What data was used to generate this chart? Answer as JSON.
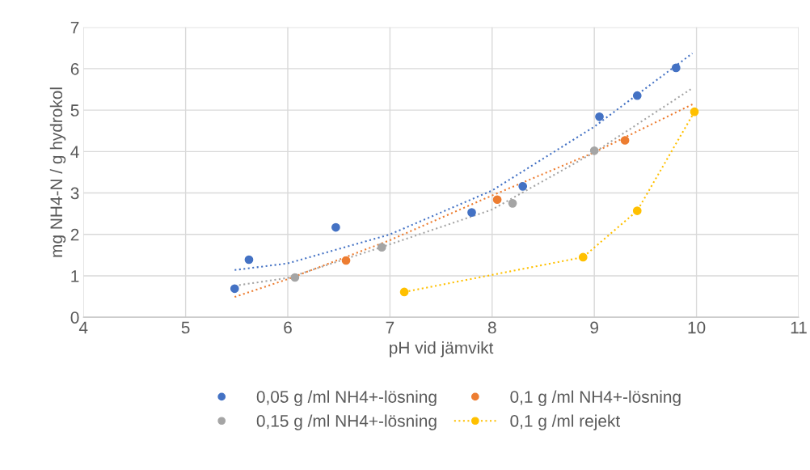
{
  "chart_data": {
    "type": "scatter",
    "xlabel": "pH vid jämvikt",
    "ylabel": "mg NH4-N / g hydrokol",
    "xlim": [
      4,
      11
    ],
    "ylim": [
      0,
      7
    ],
    "xticks": [
      4,
      5,
      6,
      7,
      8,
      9,
      10,
      11
    ],
    "yticks": [
      0,
      1,
      2,
      3,
      4,
      5,
      6,
      7
    ],
    "grid": true,
    "legend": "bottom",
    "series": [
      {
        "name": "0,05 g /ml NH4+-lösning",
        "marker": "circle",
        "color": "#4472c4",
        "x": [
          5.48,
          5.62,
          6.47,
          7.8,
          8.3,
          9.05,
          9.42,
          9.8
        ],
        "values": [
          0.69,
          1.39,
          2.17,
          2.53,
          3.16,
          4.84,
          5.35,
          6.02
        ]
      },
      {
        "name": "0,1 g /ml NH4+-lösning",
        "marker": "circle",
        "color": "#ed7d31",
        "x": [
          6.57,
          8.05,
          9.3
        ],
        "values": [
          1.37,
          2.84,
          4.27
        ]
      },
      {
        "name": "0,15 g /ml NH4+-lösning",
        "marker": "circle",
        "color": "#a5a5a5",
        "x": [
          6.07,
          6.92,
          8.2,
          9.0
        ],
        "values": [
          0.96,
          1.69,
          2.75,
          4.02
        ]
      },
      {
        "name": "0,1 g /ml rejekt",
        "type": "line",
        "marker": "circle",
        "line_style": "dotted",
        "color": "#ffc000",
        "x": [
          7.14,
          8.89,
          9.42,
          9.98
        ],
        "values": [
          0.61,
          1.45,
          2.57,
          4.96
        ]
      },
      {
        "type": "line",
        "marker": "none",
        "line_style": "dotted",
        "color": "#4472c4",
        "x": [
          5.48,
          6,
          7,
          8,
          9,
          9.96
        ],
        "values": [
          1.14,
          1.3,
          2.0,
          3.06,
          4.6,
          6.37
        ]
      },
      {
        "type": "line",
        "marker": "none",
        "line_style": "dotted",
        "color": "#ed7d31",
        "x": [
          5.48,
          6,
          7,
          8,
          9,
          9.96
        ],
        "values": [
          0.49,
          0.92,
          1.86,
          2.94,
          3.98,
          5.14
        ]
      },
      {
        "type": "line",
        "marker": "none",
        "line_style": "dotted",
        "color": "#a5a5a5",
        "x": [
          5.48,
          6,
          7,
          8,
          9,
          9.96
        ],
        "values": [
          0.76,
          0.95,
          1.76,
          2.6,
          3.98,
          5.53
        ]
      }
    ]
  }
}
